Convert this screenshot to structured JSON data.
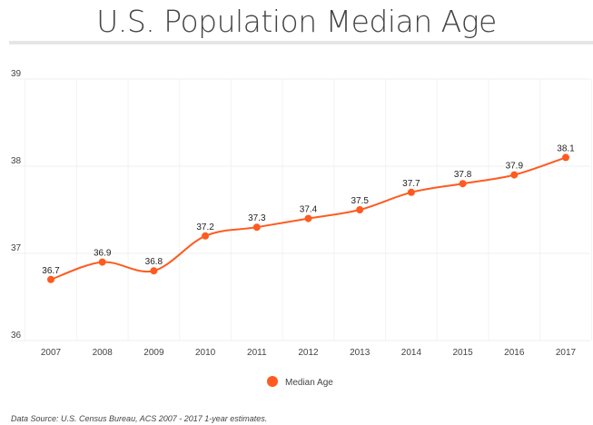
{
  "chart_data": {
    "type": "line",
    "title": "U.S. Population Median Age",
    "categories": [
      "2007",
      "2008",
      "2009",
      "2010",
      "2011",
      "2012",
      "2013",
      "2014",
      "2015",
      "2016",
      "2017"
    ],
    "series": [
      {
        "name": "Median Age",
        "values": [
          36.7,
          36.9,
          36.8,
          37.2,
          37.3,
          37.4,
          37.5,
          37.7,
          37.8,
          37.9,
          38.1
        ],
        "color": "#ff5a1f"
      }
    ],
    "ylim": [
      36,
      39
    ],
    "yticks": [
      36,
      37,
      38,
      39
    ],
    "grid": true,
    "legend": "bottom-center",
    "data_labels": true
  },
  "footer": {
    "source": "Data Source: U.S. Census Bureau, ACS 2007 - 2017 1-year estimates."
  }
}
